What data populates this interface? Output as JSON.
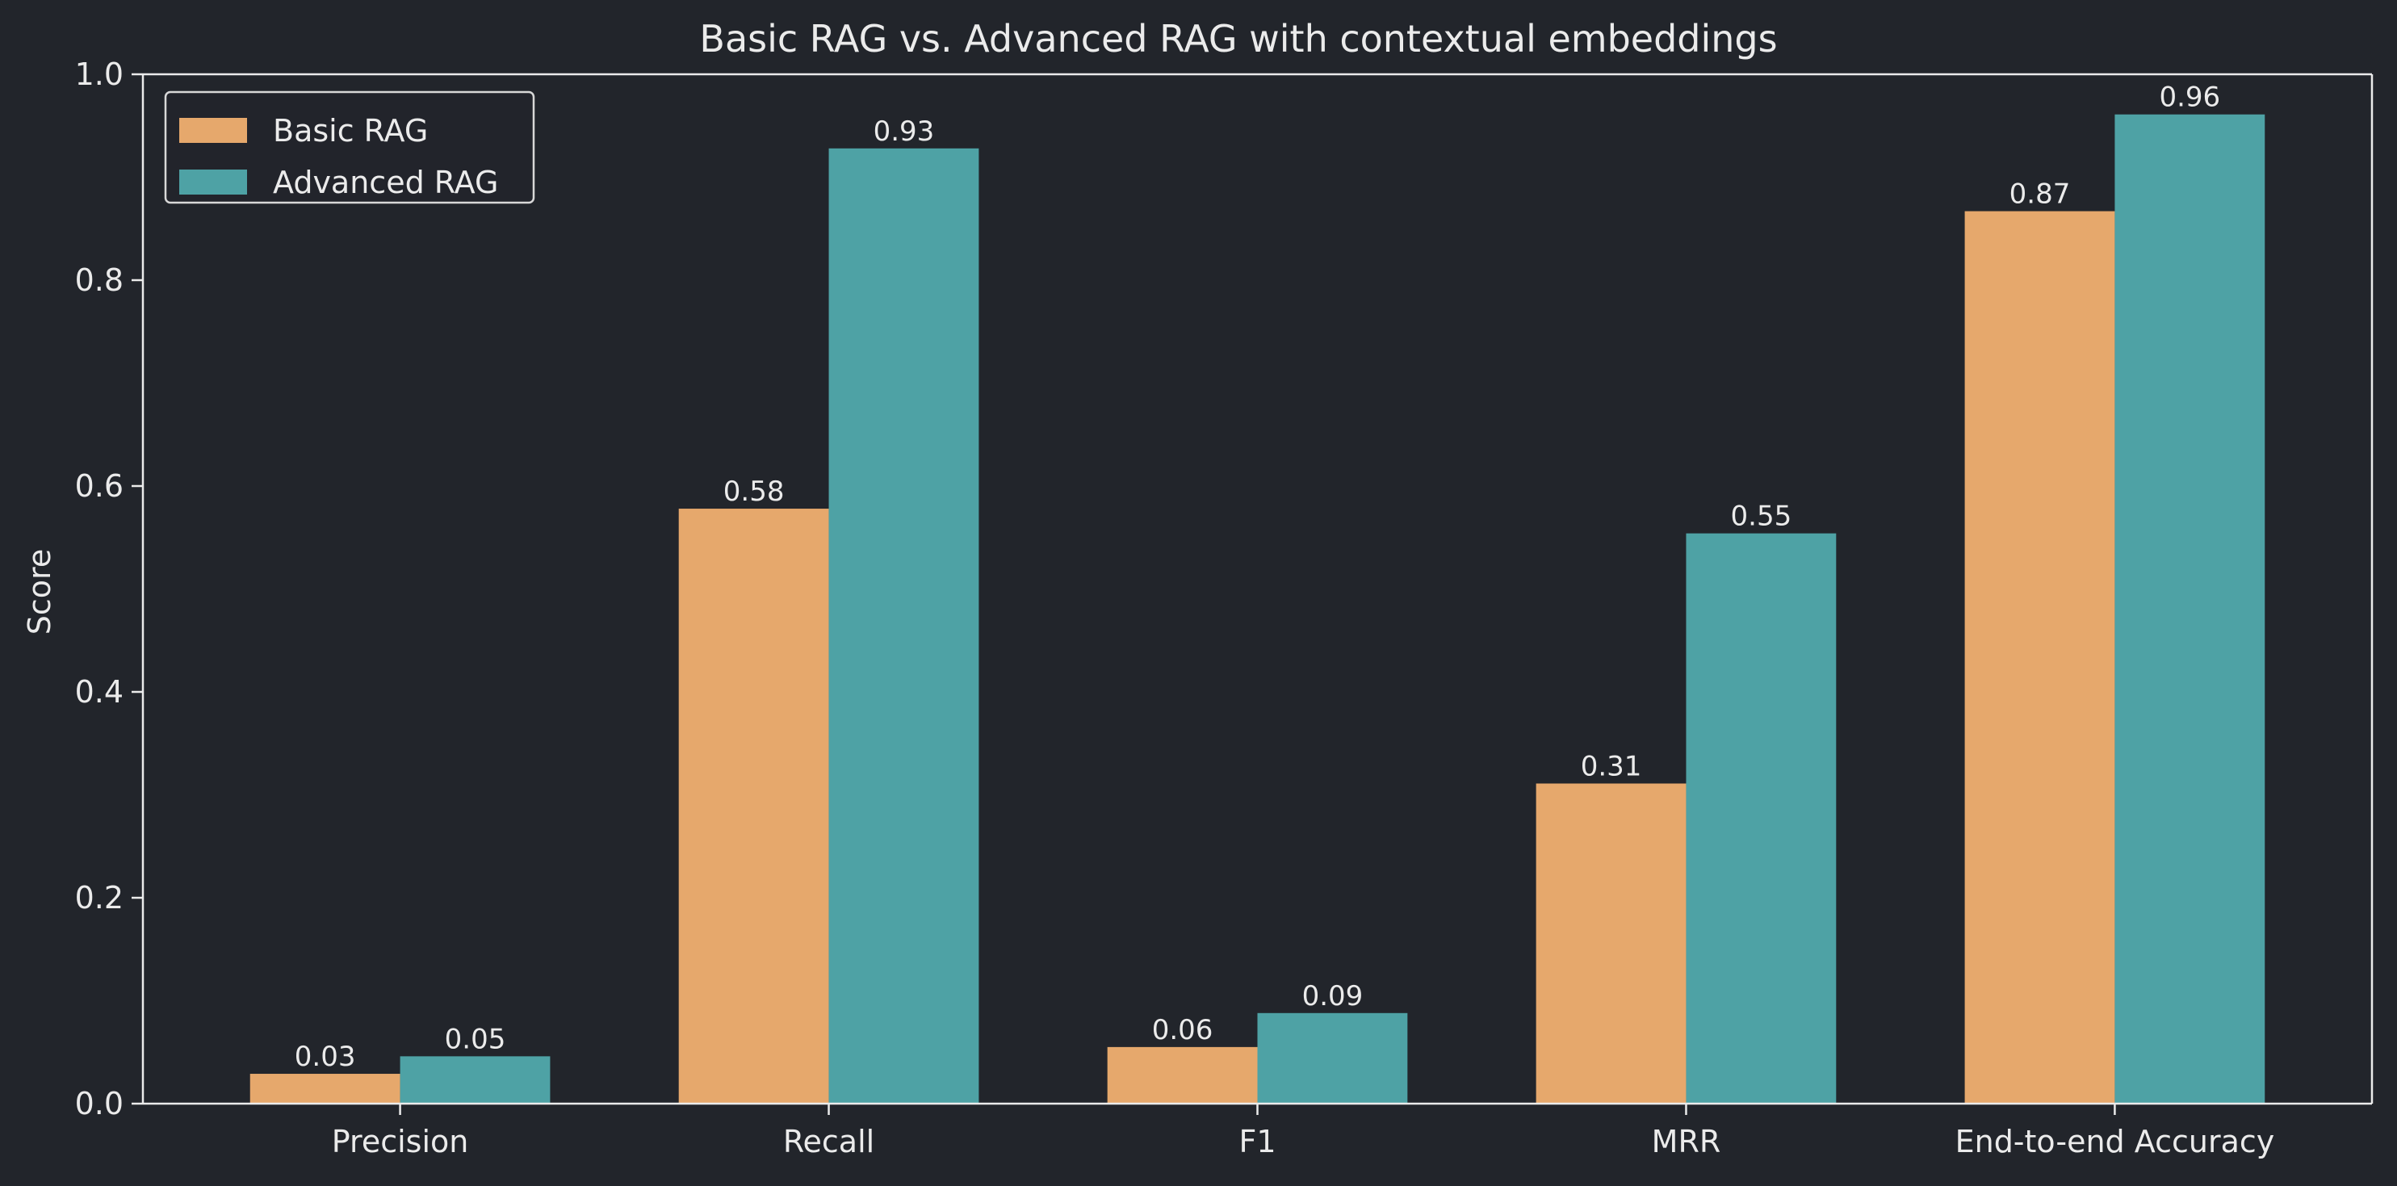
{
  "chart_data": {
    "type": "bar",
    "title": "Basic RAG vs. Advanced RAG with contextual embeddings",
    "xlabel": "",
    "ylabel": "Score",
    "ylim": [
      0,
      1.0
    ],
    "yticks": [
      "0.0",
      "0.2",
      "0.4",
      "0.6",
      "0.8",
      "1.0"
    ],
    "categories": [
      "Precision",
      "Recall",
      "F1",
      "MRR",
      "End-to-end Accuracy"
    ],
    "series": [
      {
        "name": "Basic RAG",
        "color": "#e6a86c",
        "values": [
          0.029,
          0.578,
          0.055,
          0.311,
          0.867
        ],
        "labels": [
          "0.03",
          "0.58",
          "0.06",
          "0.31",
          "0.87"
        ]
      },
      {
        "name": "Advanced RAG",
        "color": "#4ea2a5",
        "values": [
          0.046,
          0.928,
          0.088,
          0.554,
          0.961
        ],
        "labels": [
          "0.05",
          "0.93",
          "0.09",
          "0.55",
          "0.96"
        ]
      }
    ],
    "grid": false,
    "legend": "top-left",
    "colors": {
      "background": "#22252b",
      "axis": "#ebebeb",
      "text": "#ebebeb"
    }
  }
}
